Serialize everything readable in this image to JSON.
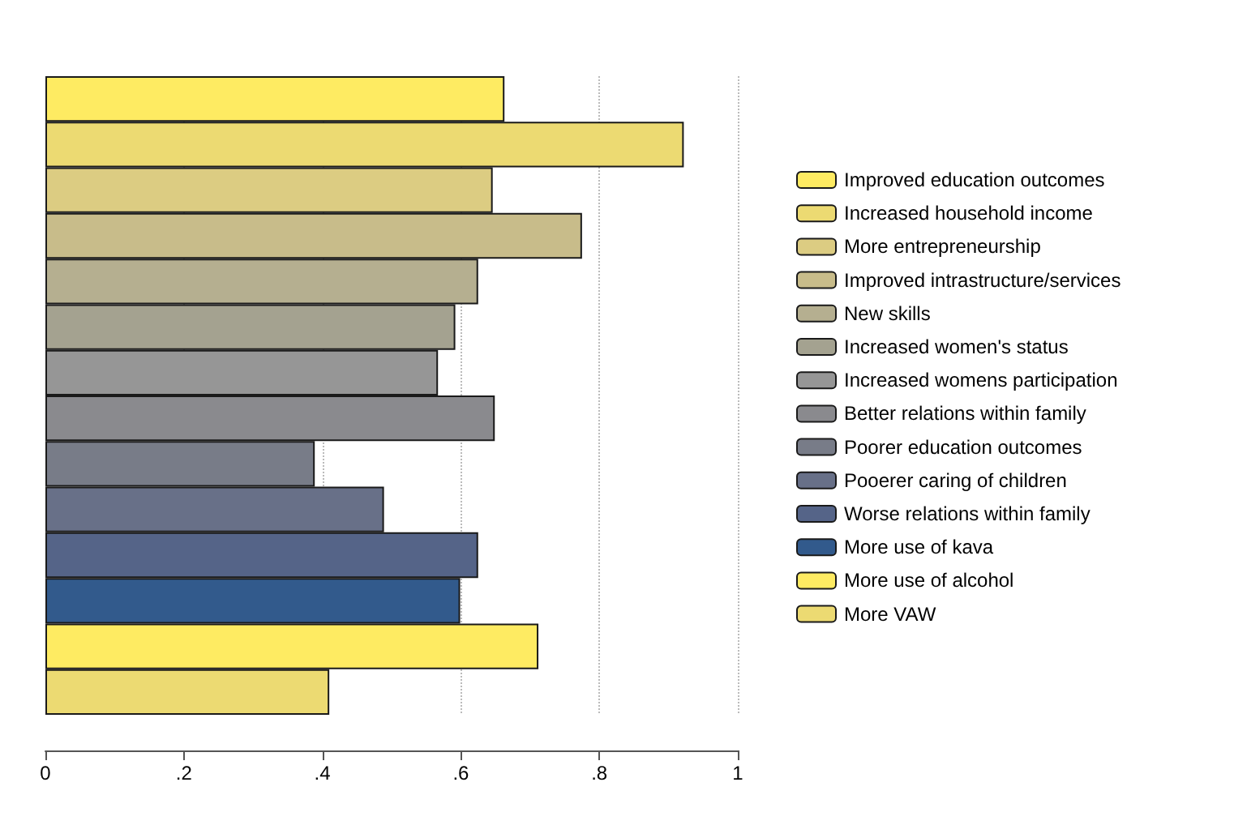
{
  "chart_data": {
    "type": "bar",
    "orientation": "horizontal",
    "stacked": true,
    "grid": "x",
    "legend": "right",
    "categories": [
      null,
      null,
      null,
      null,
      null,
      null,
      null,
      null,
      null,
      null,
      null,
      null,
      null,
      null
    ],
    "xlim": [
      0,
      1
    ],
    "xticks": [
      {
        "value": 0,
        "label": "0"
      },
      {
        "value": 0.2,
        "label": ".2"
      },
      {
        "value": 0.4,
        "label": ".4"
      },
      {
        "value": 0.6,
        "label": ".6"
      },
      {
        "value": 0.8,
        "label": ".8"
      },
      {
        "value": 1,
        "label": "1"
      }
    ],
    "series": [
      {
        "name": "Improved education outcomes",
        "color": "#feeb62",
        "values": [
          0.663,
          null,
          null,
          null,
          null,
          null,
          null,
          null,
          null,
          null,
          null,
          null,
          null,
          null
        ]
      },
      {
        "name": "Increased household income",
        "color": "#ecda72",
        "values": [
          null,
          0.922,
          null,
          null,
          null,
          null,
          null,
          null,
          null,
          null,
          null,
          null,
          null,
          null
        ]
      },
      {
        "name": "More entrepreneurship",
        "color": "#dccc82",
        "values": [
          null,
          null,
          0.646,
          null,
          null,
          null,
          null,
          null,
          null,
          null,
          null,
          null,
          null,
          null
        ]
      },
      {
        "name": "Improved intrastructure/services",
        "color": "#c8bc8a",
        "values": [
          null,
          null,
          null,
          0.775,
          null,
          null,
          null,
          null,
          null,
          null,
          null,
          null,
          null,
          null
        ]
      },
      {
        "name": "New skills",
        "color": "#b5af90",
        "values": [
          null,
          null,
          null,
          null,
          0.625,
          null,
          null,
          null,
          null,
          null,
          null,
          null,
          null,
          null
        ]
      },
      {
        "name": "Increased women's status",
        "color": "#a4a290",
        "values": [
          null,
          null,
          null,
          null,
          null,
          0.592,
          null,
          null,
          null,
          null,
          null,
          null,
          null,
          null
        ]
      },
      {
        "name": "Increased womens participation",
        "color": "#969696",
        "values": [
          null,
          null,
          null,
          null,
          null,
          null,
          0.567,
          null,
          null,
          null,
          null,
          null,
          null,
          null
        ]
      },
      {
        "name": "Better relations within family",
        "color": "#8a8a8e",
        "values": [
          null,
          null,
          null,
          null,
          null,
          null,
          null,
          0.649,
          null,
          null,
          null,
          null,
          null,
          null
        ]
      },
      {
        "name": "Poorer education outcomes",
        "color": "#787c88",
        "values": [
          null,
          null,
          null,
          null,
          null,
          null,
          null,
          null,
          0.389,
          null,
          null,
          null,
          null,
          null
        ]
      },
      {
        "name": "Pooerer caring of children",
        "color": "#687088",
        "values": [
          null,
          null,
          null,
          null,
          null,
          null,
          null,
          null,
          null,
          0.489,
          null,
          null,
          null,
          null
        ]
      },
      {
        "name": "Worse relations within family",
        "color": "#556488",
        "values": [
          null,
          null,
          null,
          null,
          null,
          null,
          null,
          null,
          null,
          null,
          0.625,
          null,
          null,
          null
        ]
      },
      {
        "name": "More use of kava",
        "color": "#325a8c",
        "values": [
          null,
          null,
          null,
          null,
          null,
          null,
          null,
          null,
          null,
          null,
          null,
          0.599,
          null,
          null
        ]
      },
      {
        "name": "More use of alcohol",
        "color": "#feeb62",
        "values": [
          null,
          null,
          null,
          null,
          null,
          null,
          null,
          null,
          null,
          null,
          null,
          null,
          0.712,
          null
        ]
      },
      {
        "name": "More VAW",
        "color": "#ecda72",
        "values": [
          null,
          null,
          null,
          null,
          null,
          null,
          null,
          null,
          null,
          null,
          null,
          null,
          null,
          0.41
        ]
      }
    ]
  }
}
